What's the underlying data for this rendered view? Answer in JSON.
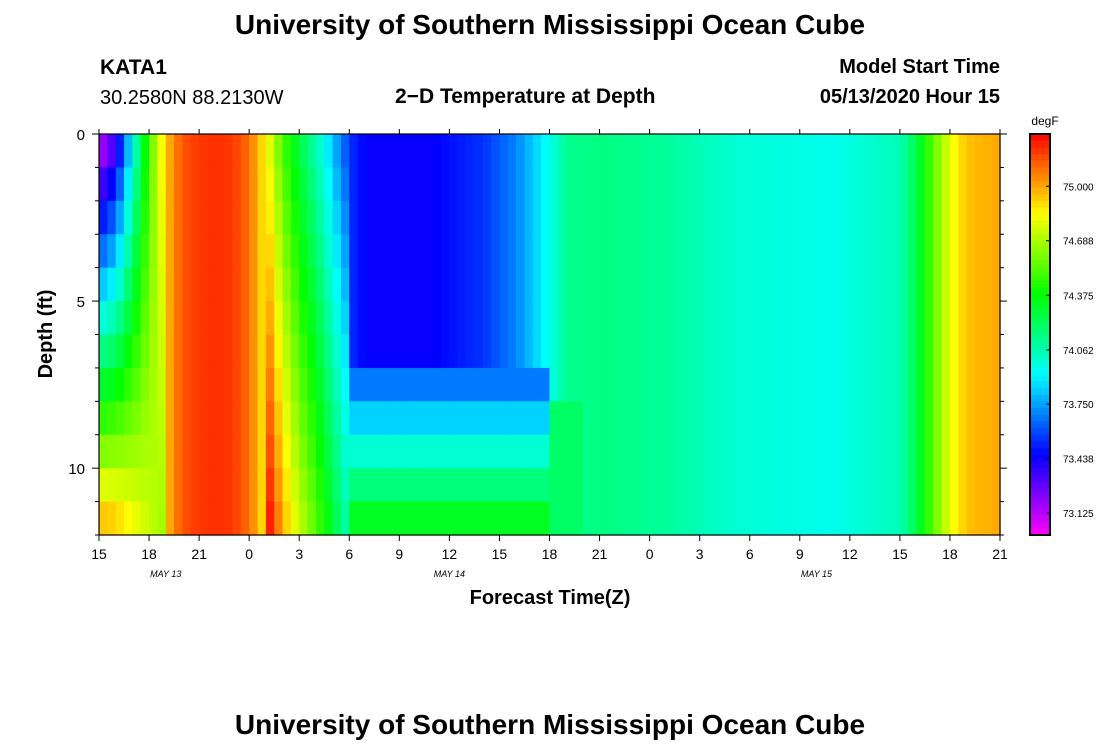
{
  "header": {
    "title": "University of Southern Mississippi Ocean Cube",
    "station": "KATA1",
    "coords": "30.2580N 88.2130W",
    "subtitle": "2−D Temperature at Depth",
    "start_label": "Model Start Time",
    "start_value": "05/13/2020 Hour 15"
  },
  "footer": {
    "title": "University of Southern Mississippi Ocean Cube"
  },
  "chart_data": {
    "type": "heatmap",
    "xlabel": "Forecast Time(Z)",
    "ylabel": "Depth (ft)",
    "x_tick_labels": [
      "15",
      "18",
      "21",
      "0",
      "3",
      "6",
      "9",
      "12",
      "15",
      "18",
      "21",
      "0",
      "3",
      "6",
      "9",
      "12",
      "15",
      "18",
      "21"
    ],
    "x_date_labels": [
      {
        "label": "MAY 13",
        "at_hour": 4
      },
      {
        "label": "MAY 14",
        "at_hour": 21
      },
      {
        "label": "MAY 15",
        "at_hour": 43
      }
    ],
    "x_range_hours": [
      0,
      54
    ],
    "y_ticks": [
      0,
      5,
      10
    ],
    "y_range_ft": [
      0,
      12
    ],
    "colorbar": {
      "unit": "degF",
      "labels": [
        "75.000",
        "74.688",
        "74.375",
        "74.062",
        "73.750",
        "73.438",
        "73.125"
      ],
      "label_values": [
        75.0,
        74.688,
        74.375,
        74.062,
        73.75,
        73.438,
        73.125
      ],
      "range": [
        73.0,
        75.3
      ]
    },
    "surface_profile": [
      {
        "hour": 0,
        "temp": 73.05
      },
      {
        "hour": 1,
        "temp": 73.3
      },
      {
        "hour": 2,
        "temp": 73.9
      },
      {
        "hour": 3,
        "temp": 74.5
      },
      {
        "hour": 4,
        "temp": 74.95
      },
      {
        "hour": 5,
        "temp": 75.15
      },
      {
        "hour": 6,
        "temp": 75.2
      },
      {
        "hour": 7,
        "temp": 75.22
      },
      {
        "hour": 8,
        "temp": 75.2
      },
      {
        "hour": 9,
        "temp": 75.1
      },
      {
        "hour": 10,
        "temp": 74.85
      },
      {
        "hour": 11,
        "temp": 74.5
      },
      {
        "hour": 12,
        "temp": 74.25
      },
      {
        "hour": 13,
        "temp": 74.05
      },
      {
        "hour": 14,
        "temp": 73.8
      },
      {
        "hour": 15,
        "temp": 73.55
      },
      {
        "hour": 16,
        "temp": 73.45
      },
      {
        "hour": 20,
        "temp": 73.45
      },
      {
        "hour": 23,
        "temp": 73.55
      },
      {
        "hour": 25,
        "temp": 73.7
      },
      {
        "hour": 27,
        "temp": 73.95
      },
      {
        "hour": 28,
        "temp": 74.12
      },
      {
        "hour": 30,
        "temp": 74.15
      },
      {
        "hour": 34,
        "temp": 74.1
      },
      {
        "hour": 38,
        "temp": 74.0
      },
      {
        "hour": 44,
        "temp": 73.95
      },
      {
        "hour": 48,
        "temp": 74.05
      },
      {
        "hour": 49,
        "temp": 74.25
      },
      {
        "hour": 50,
        "temp": 74.55
      },
      {
        "hour": 51,
        "temp": 74.8
      },
      {
        "hour": 52,
        "temp": 74.95
      },
      {
        "hour": 54,
        "temp": 75.0
      }
    ]
  }
}
